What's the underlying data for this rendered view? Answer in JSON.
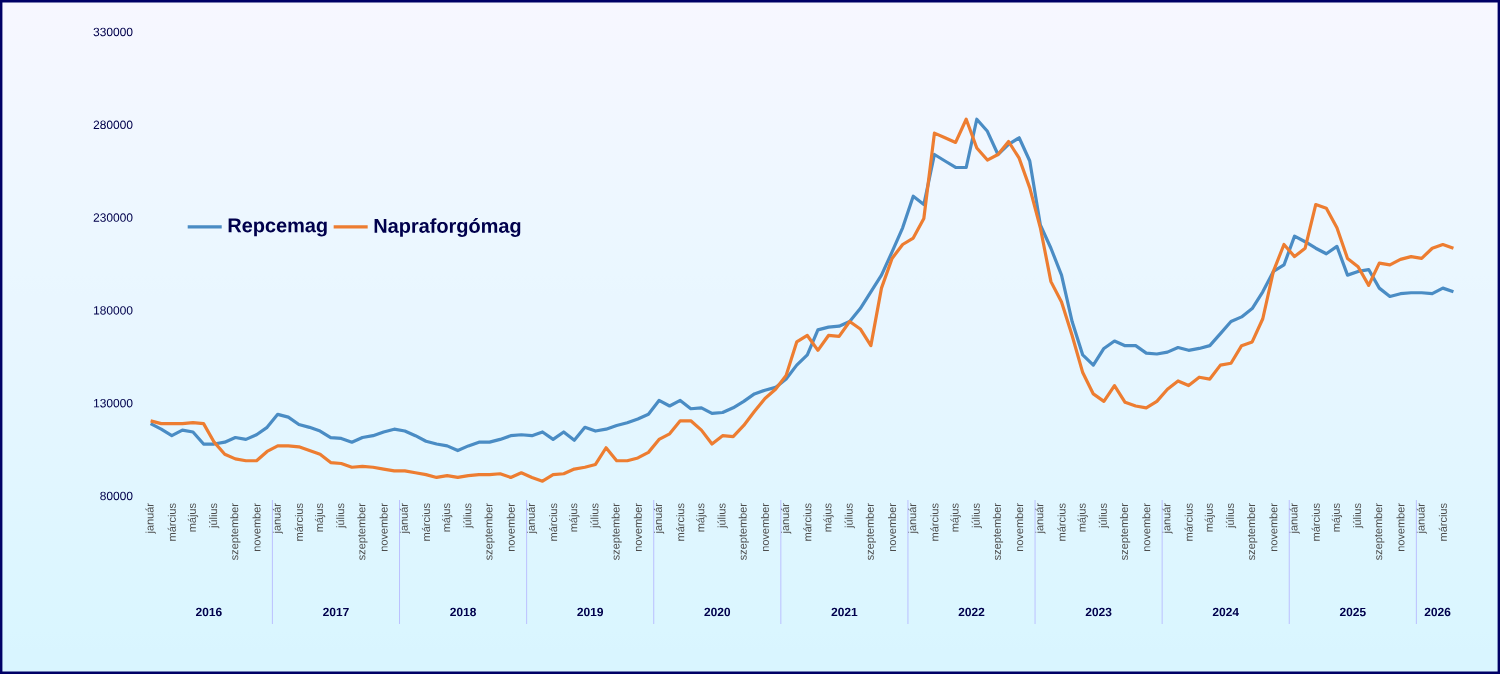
{
  "chart_data": {
    "type": "line",
    "categories": [
      "január",
      null,
      "március",
      null,
      "május",
      null,
      "július",
      null,
      "szeptember",
      null,
      "november",
      null,
      "január",
      null,
      "március",
      null,
      "május",
      null,
      "július",
      null,
      "szeptember",
      null,
      "november",
      null,
      "január",
      null,
      "március",
      null,
      "május",
      null,
      "július",
      null,
      "szeptember",
      null,
      "november",
      null,
      "január",
      null,
      "március",
      null,
      "május",
      null,
      "július",
      null,
      "szeptember",
      null,
      "november",
      null,
      "január",
      null,
      "március",
      null,
      "május",
      null,
      "július",
      null,
      "szeptember",
      null,
      "november",
      null,
      "január",
      null,
      "március",
      null,
      "május",
      null,
      "július",
      null,
      "szeptember",
      null,
      "november",
      null,
      "január",
      null,
      "március",
      null,
      "május",
      null,
      "július",
      null,
      "szeptember",
      null,
      "november",
      null,
      "január",
      null,
      "március",
      null,
      "május",
      null,
      "július",
      null,
      "szeptember",
      null,
      "november",
      null,
      "január",
      null,
      "március",
      null,
      "május",
      null,
      "július",
      null,
      "szeptember",
      null,
      "november",
      null,
      "január",
      null,
      "március",
      null,
      "május",
      null,
      "július",
      null,
      "szeptember",
      null,
      "november",
      null,
      "január",
      null,
      "március",
      null
    ],
    "series": [
      {
        "name": "Repcemag",
        "color": "#4a8cc4",
        "values": [
          119000,
          116000,
          112500,
          115500,
          114500,
          108000,
          108000,
          109000,
          111500,
          110500,
          113000,
          117000,
          124000,
          122500,
          118500,
          117000,
          115000,
          111500,
          111000,
          109000,
          111500,
          112500,
          114500,
          116000,
          115000,
          112500,
          109500,
          108000,
          107000,
          104500,
          107000,
          109000,
          109000,
          110500,
          112500,
          113000,
          112500,
          114500,
          110500,
          114500,
          110000,
          117000,
          115000,
          116000,
          118000,
          119500,
          121500,
          124000,
          131500,
          128500,
          131500,
          127000,
          127500,
          124500,
          125000,
          127500,
          131000,
          135000,
          137000,
          138500,
          143000,
          150500,
          156000,
          169500,
          171000,
          171500,
          174000,
          181000,
          190000,
          199000,
          211500,
          224500,
          241500,
          237000,
          264000,
          260500,
          257000,
          257000,
          283000,
          276500,
          264000,
          269500,
          273000,
          260500,
          226000,
          213500,
          199000,
          174000,
          156000,
          150500,
          159500,
          163500,
          161000,
          161000,
          157000,
          156500,
          157500,
          160000,
          158500,
          159500,
          161000,
          167500,
          174000,
          176500,
          181000,
          190000,
          201000,
          204500,
          220000,
          217000,
          213500,
          210500,
          214500,
          199000,
          201000,
          202000,
          192000,
          187500,
          189000,
          189500,
          189500,
          189000,
          192000,
          190000
        ]
      },
      {
        "name": "Napraforgómag",
        "color": "#ed7d31",
        "values": [
          120500,
          119000,
          119000,
          119000,
          119500,
          119000,
          109000,
          102500,
          100000,
          99000,
          99000,
          104000,
          107000,
          107000,
          106500,
          104500,
          102500,
          98000,
          97500,
          95500,
          96000,
          95500,
          94500,
          93500,
          93500,
          92500,
          91500,
          90000,
          91000,
          90000,
          91000,
          91500,
          91500,
          92000,
          90000,
          92500,
          90000,
          88000,
          91500,
          92000,
          94500,
          95500,
          97000,
          106000,
          99000,
          99000,
          100500,
          103500,
          110500,
          113500,
          120500,
          120500,
          115500,
          108000,
          112500,
          112000,
          118000,
          125500,
          132500,
          137500,
          145000,
          163000,
          166500,
          158500,
          166500,
          166000,
          174000,
          170000,
          161000,
          192000,
          208000,
          215500,
          219000,
          229500,
          275500,
          273000,
          270500,
          283000,
          267500,
          261000,
          264000,
          271000,
          262000,
          246000,
          224500,
          195500,
          184500,
          166500,
          146500,
          135000,
          131000,
          139500,
          130500,
          128500,
          127500,
          131000,
          137500,
          142000,
          139500,
          144000,
          143000,
          150500,
          151500,
          161000,
          163000,
          175500,
          201000,
          215500,
          209000,
          213500,
          237000,
          235000,
          224500,
          208000,
          203500,
          193500,
          205500,
          204500,
          207500,
          209000,
          208000,
          213500,
          215500,
          213500
        ]
      }
    ],
    "ylim": [
      80000,
      330000
    ],
    "yticks": [
      80000,
      130000,
      180000,
      230000,
      280000,
      330000
    ],
    "annotations": [
      "2016",
      "2017",
      "2018",
      "2019",
      "2020",
      "2021",
      "2022",
      "2023",
      "2024",
      "2025",
      "2026"
    ],
    "legend": "left",
    "grid": false,
    "marker": "none",
    "line_style": "solid"
  }
}
